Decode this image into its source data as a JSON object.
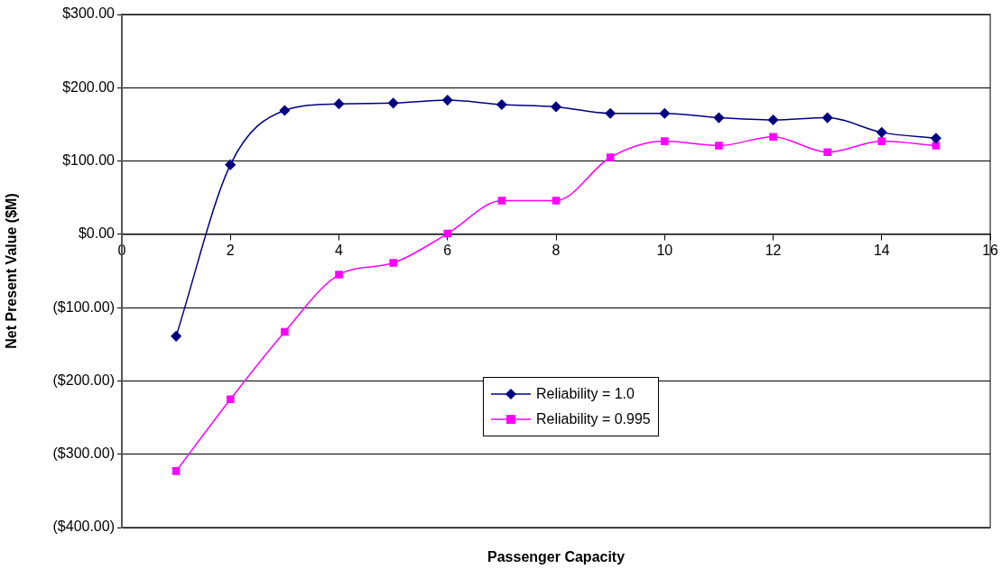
{
  "chart_data": {
    "type": "line",
    "xlabel": "Passenger Capacity",
    "ylabel": "Net Present Value ($M)",
    "x": [
      1,
      2,
      3,
      4,
      5,
      6,
      7,
      8,
      9,
      10,
      11,
      12,
      13,
      14,
      15
    ],
    "series": [
      {
        "name": "Reliability = 1.0",
        "color": "#000080",
        "marker": "diamond",
        "values": [
          -139,
          95,
          169,
          178,
          179,
          183,
          177,
          174,
          165,
          165,
          159,
          156,
          159,
          139,
          131
        ]
      },
      {
        "name": "Reliability = 0.995",
        "color": "#ff00ff",
        "marker": "square",
        "values": [
          -323,
          -225,
          -133,
          -55,
          -39,
          1,
          46,
          46,
          105,
          127,
          121,
          133,
          112,
          127,
          121
        ]
      }
    ],
    "xlim": [
      0,
      16
    ],
    "xticks": [
      0,
      2,
      4,
      6,
      8,
      10,
      12,
      14,
      16
    ],
    "ylim": [
      -400,
      300
    ],
    "yticks": [
      {
        "value": -400,
        "label": "($400.00)"
      },
      {
        "value": -300,
        "label": "($300.00)"
      },
      {
        "value": -200,
        "label": "($200.00)"
      },
      {
        "value": -100,
        "label": "($100.00)"
      },
      {
        "value": 0,
        "label": "$0.00"
      },
      {
        "value": 100,
        "label": "$100.00"
      },
      {
        "value": 200,
        "label": "$200.00"
      },
      {
        "value": 300,
        "label": "$300.00"
      }
    ],
    "grid": "y",
    "legend": "bottom center",
    "line_style": "solid"
  }
}
